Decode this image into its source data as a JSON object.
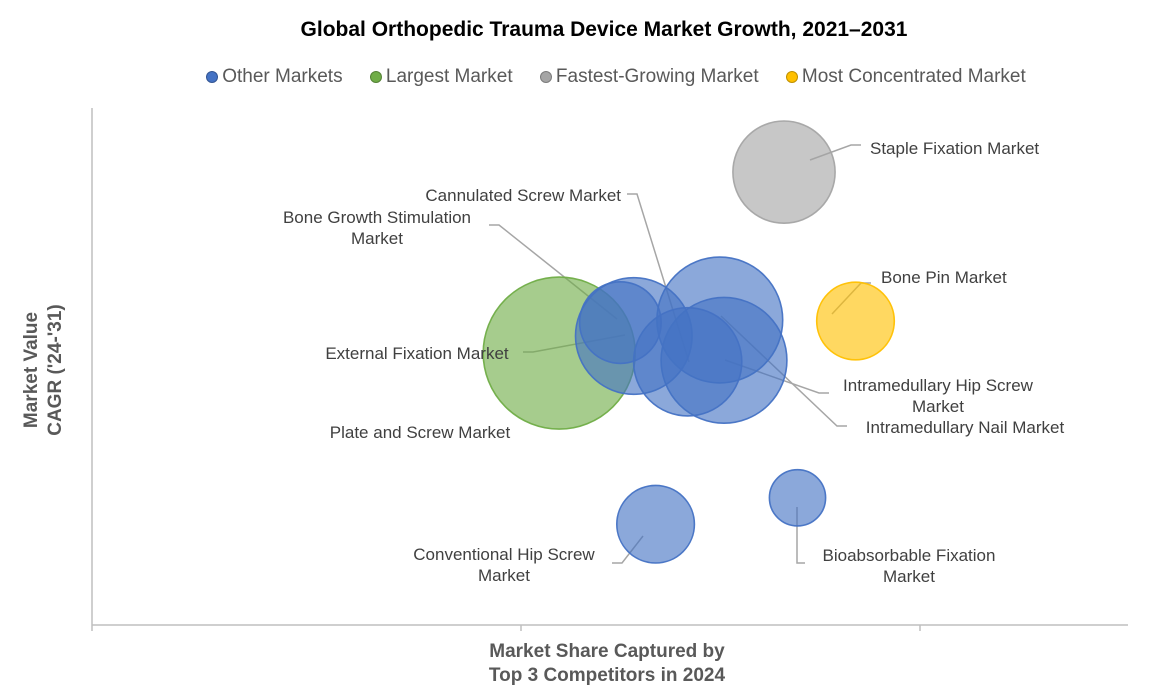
{
  "chart_data": {
    "type": "scatter",
    "variant": "bubble",
    "title": "Global Orthopedic Trauma Device Market Growth, 2021–2031",
    "xlabel_lines": [
      "Market Share Captured by",
      "Top 3 Competitors in 2024"
    ],
    "ylabel_lines": [
      "Market Value",
      "CAGR ('24-'31)"
    ],
    "xlim": [
      0,
      100
    ],
    "ylim": [
      0,
      100
    ],
    "grid": false,
    "legend_position": "top",
    "legend": [
      {
        "name": "Other Markets",
        "color": "#4472C4"
      },
      {
        "name": "Largest Market",
        "color": "#70AD47"
      },
      {
        "name": "Fastest-Growing Market",
        "color": "#A5A5A5"
      },
      {
        "name": "Most Concentrated Market",
        "color": "#FFC000"
      }
    ],
    "series": [
      {
        "name": "Other Markets",
        "color": "#4472C4",
        "points": [
          {
            "label": "Cannulated Screw Market",
            "x": 51.0,
            "y": 58.5,
            "size": 21
          },
          {
            "label": "Bone Growth Stimulation Market",
            "x": 52.3,
            "y": 55.9,
            "size": 43
          },
          {
            "label": "Intramedullary Hip Screw Market",
            "x": 60.6,
            "y": 59.0,
            "size": 50
          },
          {
            "label": "Intramedullary Nail Market",
            "x": 61.0,
            "y": 51.2,
            "size": 50
          },
          {
            "label": "Conventional Hip Screw Market",
            "x": 54.4,
            "y": 19.5,
            "size": 19
          },
          {
            "label": "Bioabsorbable Fixation Market",
            "x": 68.1,
            "y": 24.6,
            "size": 10
          },
          {
            "label": "External Fixation Market",
            "x": 57.5,
            "y": 50.9,
            "size": 37
          }
        ]
      },
      {
        "name": "Largest Market",
        "color": "#70AD47",
        "points": [
          {
            "label": "Plate and Screw Market",
            "x": 45.1,
            "y": 52.6,
            "size": 73
          }
        ]
      },
      {
        "name": "Fastest-Growing Market",
        "color": "#A5A5A5",
        "points": [
          {
            "label": "Staple Fixation Market",
            "x": 66.8,
            "y": 87.6,
            "size": 33
          }
        ]
      },
      {
        "name": "Most Concentrated Market",
        "color": "#FFC000",
        "points": [
          {
            "label": "Bone Pin Market",
            "x": 73.7,
            "y": 58.8,
            "size": 19
          }
        ]
      }
    ]
  }
}
